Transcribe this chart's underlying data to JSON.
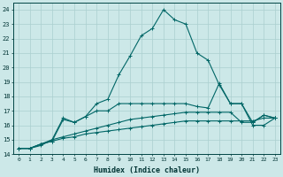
{
  "xlabel": "Humidex (Indice chaleur)",
  "bg_color": "#cce8e8",
  "line_color": "#006666",
  "grid_color": "#aacfcf",
  "xlim": [
    -0.5,
    23.5
  ],
  "ylim": [
    14,
    24.5
  ],
  "xticks": [
    0,
    1,
    2,
    3,
    4,
    5,
    6,
    7,
    8,
    9,
    10,
    11,
    12,
    13,
    14,
    15,
    16,
    17,
    18,
    19,
    20,
    21,
    22,
    23
  ],
  "yticks": [
    14,
    15,
    16,
    17,
    18,
    19,
    20,
    21,
    22,
    23,
    24
  ],
  "series": [
    {
      "x": [
        0,
        1,
        2,
        3,
        4,
        5,
        6,
        7,
        8,
        9,
        10,
        11,
        12,
        13,
        14,
        15,
        16,
        17,
        18,
        19,
        20,
        21,
        22,
        23
      ],
      "y": [
        14.4,
        14.4,
        14.7,
        14.9,
        15.1,
        15.2,
        15.4,
        15.5,
        15.6,
        15.7,
        15.8,
        15.9,
        16.0,
        16.1,
        16.2,
        16.3,
        16.3,
        16.3,
        16.3,
        16.3,
        16.3,
        16.3,
        16.5,
        16.5
      ]
    },
    {
      "x": [
        0,
        1,
        2,
        3,
        4,
        5,
        6,
        7,
        8,
        9,
        10,
        11,
        12,
        13,
        14,
        15,
        16,
        17,
        18,
        19,
        20,
        21,
        22,
        23
      ],
      "y": [
        14.4,
        14.4,
        14.7,
        15.0,
        15.2,
        15.4,
        15.6,
        15.8,
        16.0,
        16.2,
        16.4,
        16.5,
        16.6,
        16.7,
        16.8,
        16.9,
        16.9,
        16.9,
        16.9,
        16.9,
        16.2,
        16.2,
        16.7,
        16.5
      ]
    },
    {
      "x": [
        0,
        1,
        2,
        3,
        4,
        5,
        6,
        7,
        8,
        9,
        10,
        11,
        12,
        13,
        14,
        15,
        16,
        17,
        18,
        19,
        20,
        21,
        22,
        23
      ],
      "y": [
        14.4,
        14.4,
        14.7,
        14.9,
        16.4,
        16.2,
        16.6,
        17.0,
        17.0,
        17.5,
        17.5,
        17.5,
        17.5,
        17.5,
        17.5,
        17.5,
        17.3,
        17.2,
        18.9,
        17.5,
        17.5,
        16.2,
        16.7,
        16.5
      ]
    },
    {
      "x": [
        0,
        1,
        2,
        3,
        4,
        5,
        6,
        7,
        8,
        9,
        10,
        11,
        12,
        13,
        14,
        15,
        16,
        17,
        18,
        19,
        20,
        21,
        22,
        23
      ],
      "y": [
        14.4,
        14.4,
        14.6,
        15.0,
        16.5,
        16.2,
        16.6,
        17.5,
        17.8,
        19.5,
        20.8,
        22.2,
        22.7,
        24.0,
        23.3,
        23.0,
        21.0,
        20.5,
        18.8,
        17.5,
        17.5,
        16.0,
        16.0,
        16.5
      ]
    }
  ]
}
